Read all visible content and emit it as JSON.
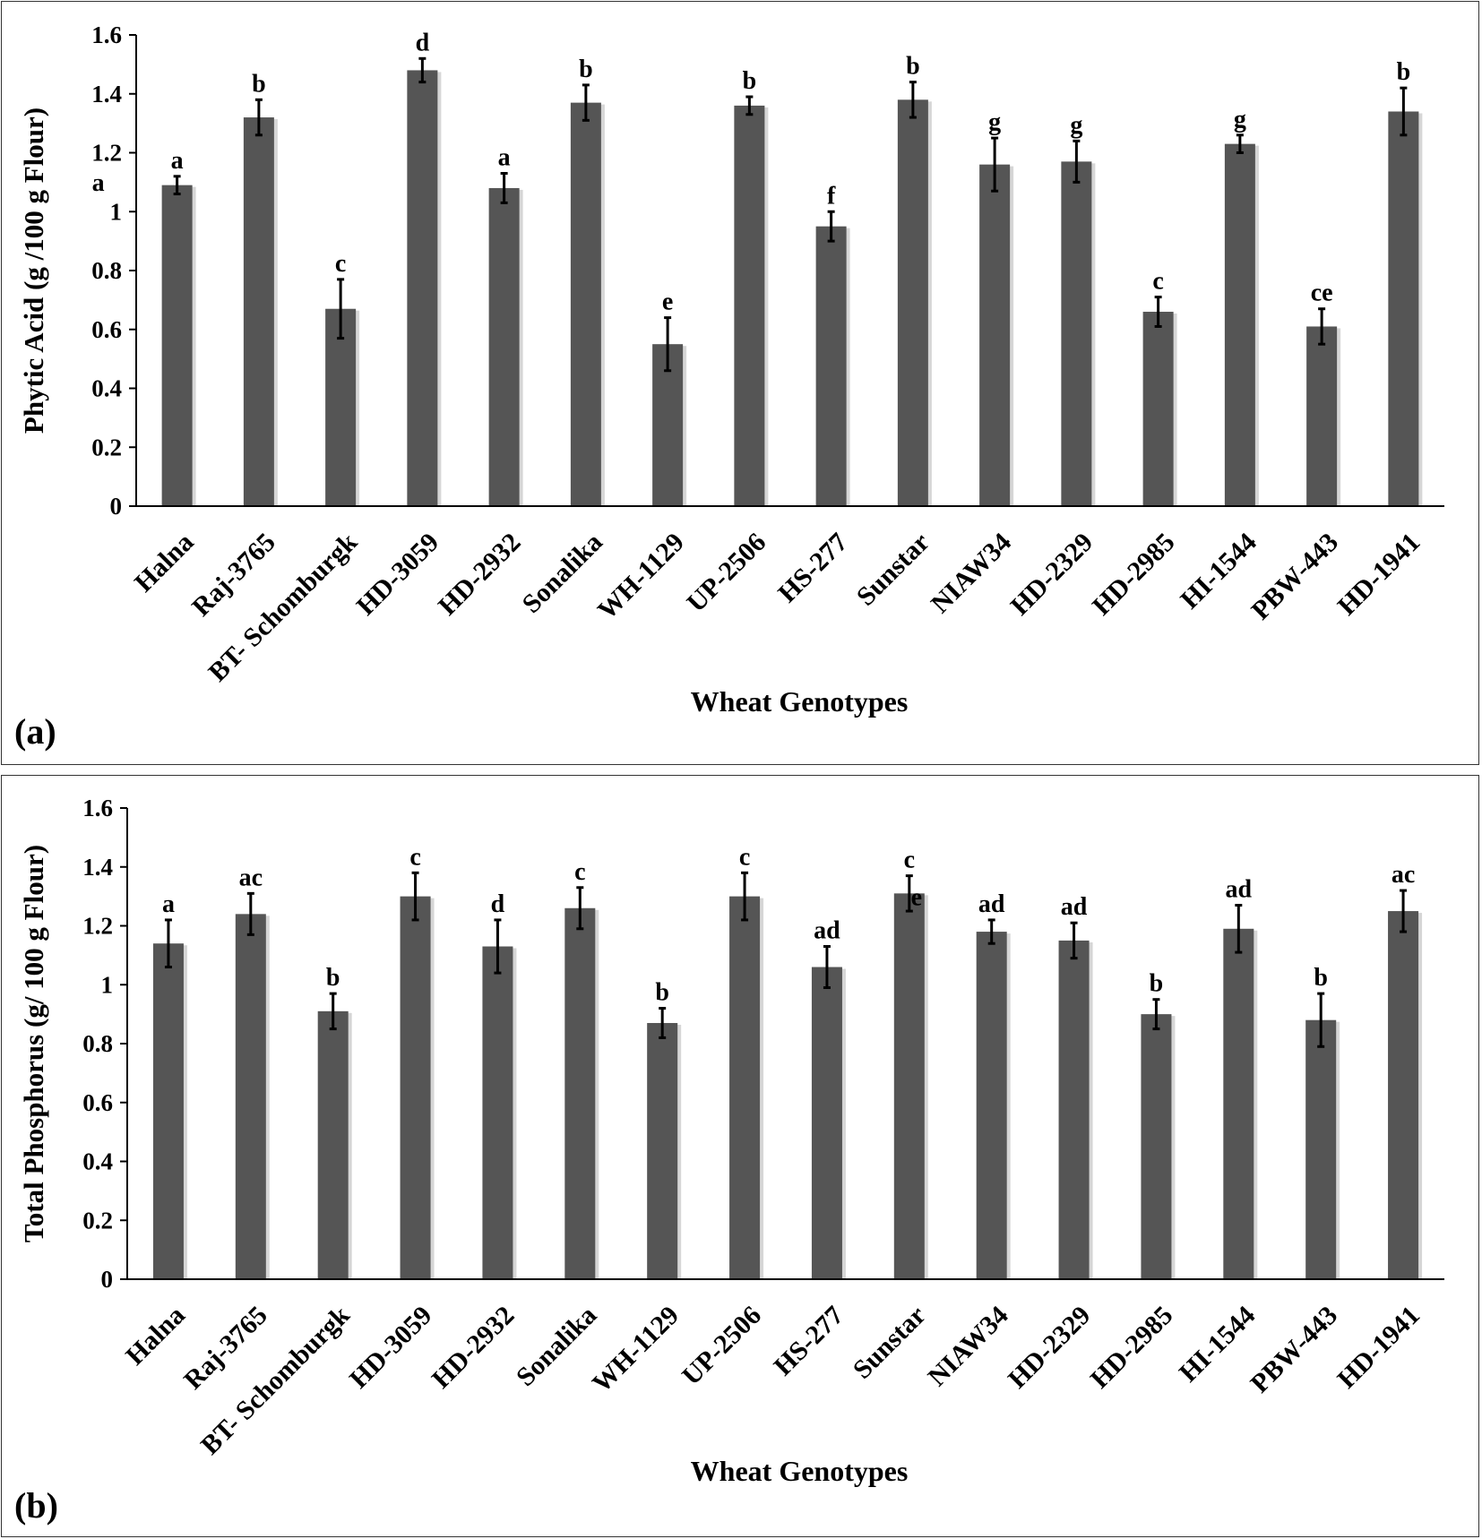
{
  "colors": {
    "bar": "#555555",
    "bar_shadow": "#d6d6d6",
    "axis": "#000000",
    "error": "#000000"
  },
  "chart_data": [
    {
      "type": "bar",
      "panel_label": "(a)",
      "title": "",
      "xlabel": "Wheat Genotypes",
      "ylabel": "Phytic Acid (g /100 g Flour)",
      "ylim": [
        0,
        1.6
      ],
      "yticks": [
        "0",
        "0.2",
        "0.4",
        "0.6",
        "0.8",
        "1",
        "1.2",
        "1.4",
        "1.6"
      ],
      "categories": [
        "Halna",
        "Raj-3765",
        "BT- Schomburgk",
        "HD-3059",
        "HD-2932",
        "Sonalika",
        "WH-1129",
        "UP-2506",
        "HS-277",
        "Sunstar",
        "NIAW34",
        "HD-2329",
        "HD-2985",
        "HI-1544",
        "PBW-443",
        "HD-1941"
      ],
      "values": [
        1.09,
        1.32,
        0.67,
        1.48,
        1.08,
        1.37,
        0.55,
        1.36,
        0.95,
        1.38,
        1.16,
        1.17,
        0.66,
        1.23,
        0.61,
        1.34
      ],
      "errors": [
        0.03,
        0.06,
        0.1,
        0.04,
        0.05,
        0.06,
        0.09,
        0.03,
        0.05,
        0.06,
        0.09,
        0.07,
        0.05,
        0.03,
        0.06,
        0.08
      ],
      "annotations": [
        "a",
        "b",
        "c",
        "d",
        "a",
        "b",
        "e",
        "b",
        "f",
        "b",
        "g",
        "g",
        "c",
        "g",
        "ce",
        "b"
      ],
      "extra_annotation": {
        "text": "a",
        "x_category": "Halna",
        "y": 1.07
      }
    },
    {
      "type": "bar",
      "panel_label": "(b)",
      "title": "",
      "xlabel": "Wheat Genotypes",
      "ylabel": "Total Phosphorus (g/ 100 g Flour)",
      "ylim": [
        0,
        1.6
      ],
      "yticks": [
        "0",
        "0.2",
        "0.4",
        "0.6",
        "0.8",
        "1",
        "1.2",
        "1.4",
        "1.6"
      ],
      "categories": [
        "Halna",
        "Raj-3765",
        "BT- Schomburgk",
        "HD-3059",
        "HD-2932",
        "Sonalika",
        "WH-1129",
        "UP-2506",
        "HS-277",
        "Sunstar",
        "NIAW34",
        "HD-2329",
        "HD-2985",
        "HI-1544",
        "PBW-443",
        "HD-1941"
      ],
      "values": [
        1.14,
        1.24,
        0.91,
        1.3,
        1.13,
        1.26,
        0.87,
        1.3,
        1.06,
        1.31,
        1.18,
        1.15,
        0.9,
        1.19,
        0.88,
        1.25
      ],
      "errors": [
        0.08,
        0.07,
        0.06,
        0.08,
        0.09,
        0.07,
        0.05,
        0.08,
        0.07,
        0.06,
        0.04,
        0.06,
        0.05,
        0.08,
        0.09,
        0.07
      ],
      "annotations": [
        "a",
        "ac",
        "b",
        "c",
        "d",
        "c",
        "b",
        "c",
        "ad",
        "c",
        "ad",
        "ad",
        "b",
        "ad",
        "b",
        "ac"
      ],
      "extra_annotation": {
        "text": "e",
        "x_category": "Sunstar",
        "y": 1.27
      }
    }
  ]
}
